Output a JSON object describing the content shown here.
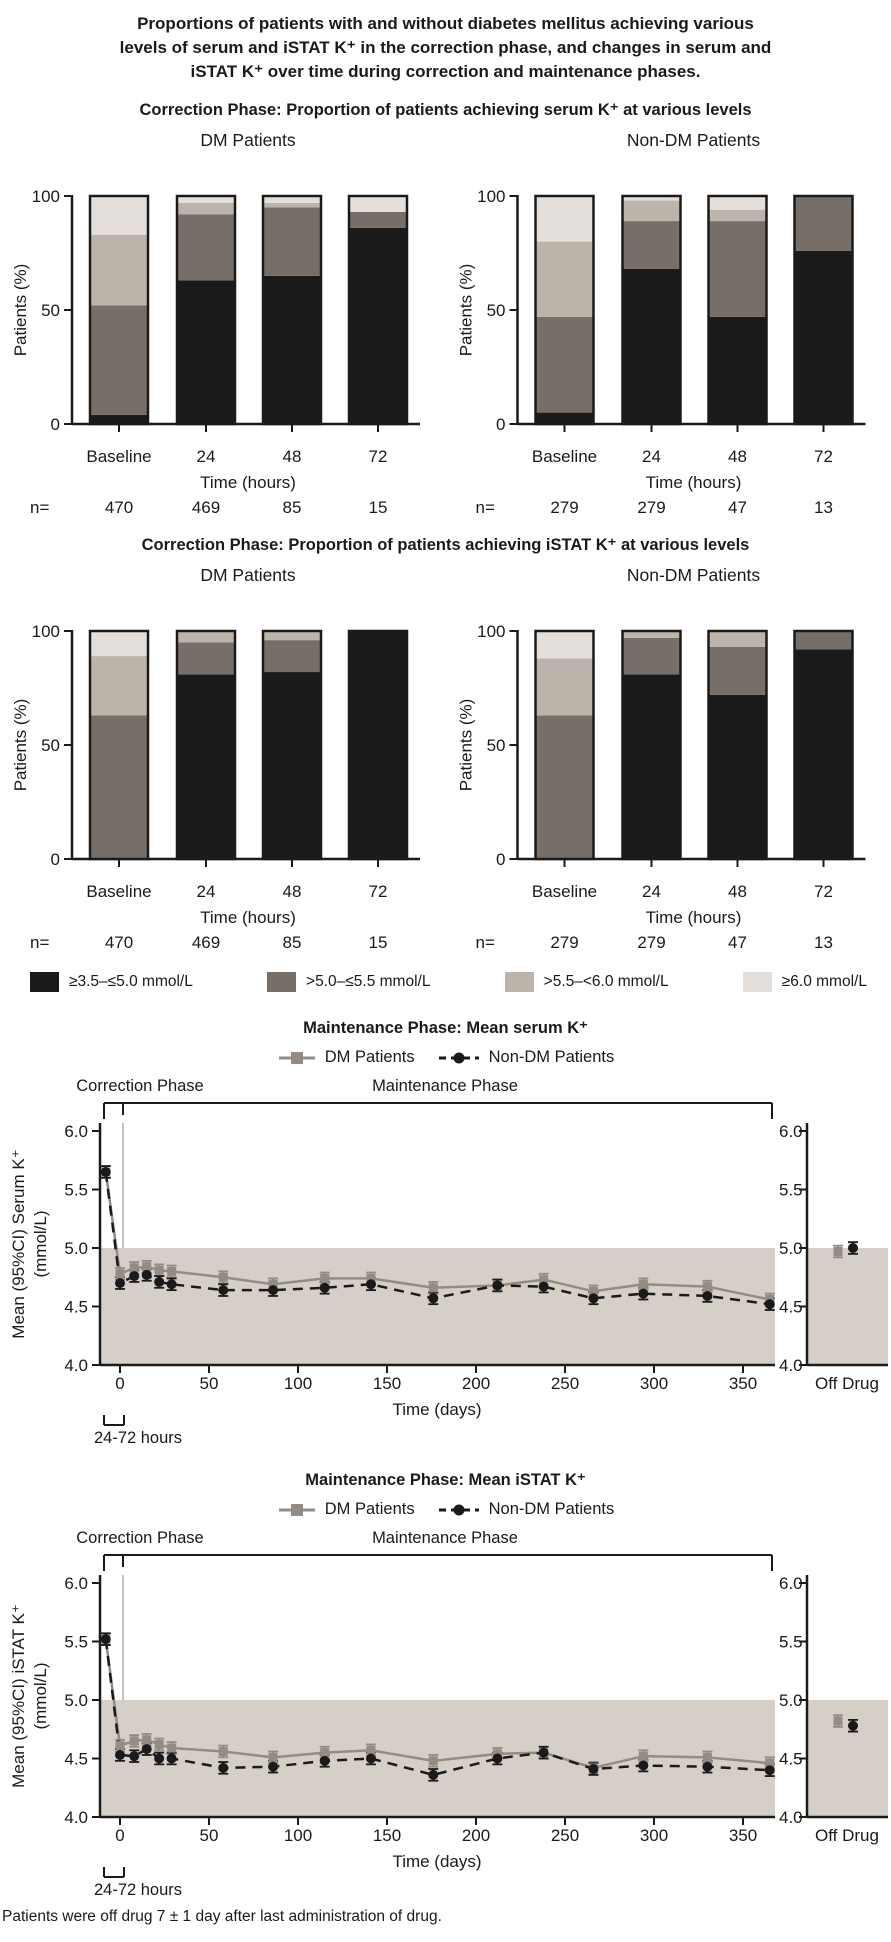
{
  "figure_title": "Proportions of patients with and without diabetes mellitus achieving various levels of serum and iSTAT K⁺ in the correction phase, and changes in serum and iSTAT K⁺ over time during correction and maintenance phases.",
  "footer": "Patients were off drug 7 ± 1 day after last administration of drug.",
  "colors": {
    "black": "#1a1a1a",
    "dark_gray": "#776E67",
    "mid_gray": "#BCB4AB",
    "light_gray": "#E4DFDA",
    "band": "#D6CFC8",
    "dm_gray": "#948B84",
    "separator_gray": "#B3ACA5",
    "axis": "#1a1a1a"
  },
  "legend_bars": {
    "items": [
      {
        "label": "≥3.5–≤5.0 mmol/L",
        "color_key": "black"
      },
      {
        "label": ">5.0–≤5.5 mmol/L",
        "color_key": "dark_gray"
      },
      {
        "label": ">5.5–<6.0 mmol/L",
        "color_key": "mid_gray"
      },
      {
        "label": "≥6.0 mmol/L",
        "color_key": "light_gray"
      }
    ]
  },
  "chart_data": [
    {
      "type": "bar",
      "stacked": true,
      "title": "Correction Phase: Proportion of patients achieving serum K⁺ at various levels",
      "ylabel": "Patients (%)",
      "xlabel": "Time (hours)",
      "ylim": [
        0,
        100
      ],
      "yticks": [
        0,
        50,
        100
      ],
      "categories": [
        "Baseline",
        "24",
        "48",
        "72"
      ],
      "segments": [
        "≥3.5–≤5.0 mmol/L",
        ">5.0–≤5.5 mmol/L",
        ">5.5–<6.0 mmol/L",
        "≥6.0 mmol/L"
      ],
      "panels": [
        {
          "title": "DM Patients",
          "n_label": "n=",
          "n": [
            "470",
            "469",
            "85",
            "15"
          ],
          "values": [
            [
              4,
              48,
              31,
              17
            ],
            [
              63,
              29,
              5,
              3
            ],
            [
              65,
              30,
              2,
              3
            ],
            [
              86,
              7,
              0,
              7
            ]
          ]
        },
        {
          "title": "Non-DM Patients",
          "n_label": "n=",
          "n": [
            "279",
            "279",
            "47",
            "13"
          ],
          "values": [
            [
              5,
              42,
              33,
              20
            ],
            [
              68,
              21,
              9,
              2
            ],
            [
              47,
              42,
              5,
              6
            ],
            [
              76,
              24,
              0,
              0
            ]
          ]
        }
      ]
    },
    {
      "type": "bar",
      "stacked": true,
      "title": "Correction Phase: Proportion of patients achieving iSTAT K⁺ at various levels",
      "ylabel": "Patients (%)",
      "xlabel": "Time (hours)",
      "ylim": [
        0,
        100
      ],
      "yticks": [
        0,
        50,
        100
      ],
      "categories": [
        "Baseline",
        "24",
        "48",
        "72"
      ],
      "segments": [
        "≥3.5–≤5.0 mmol/L",
        ">5.0–≤5.5 mmol/L",
        ">5.5–<6.0 mmol/L",
        "≥6.0 mmol/L"
      ],
      "panels": [
        {
          "title": "DM Patients",
          "n_label": "n=",
          "n": [
            "470",
            "469",
            "85",
            "15"
          ],
          "values": [
            [
              0,
              63,
              26,
              11
            ],
            [
              81,
              14,
              5,
              0
            ],
            [
              82,
              14,
              4,
              0
            ],
            [
              100,
              0,
              0,
              0
            ]
          ]
        },
        {
          "title": "Non-DM Patients",
          "n_label": "n=",
          "n": [
            "279",
            "279",
            "47",
            "13"
          ],
          "values": [
            [
              0,
              63,
              25,
              12
            ],
            [
              81,
              16,
              3,
              0
            ],
            [
              72,
              21,
              7,
              0
            ],
            [
              92,
              8,
              0,
              0
            ]
          ]
        }
      ]
    },
    {
      "type": "line",
      "title": "Maintenance Phase: Mean serum K⁺",
      "ylabel_lines": [
        "Mean (95%CI) Serum K⁺",
        "(mmol/L)"
      ],
      "xlabel": "Time (days)",
      "ylim": [
        4.0,
        6.0
      ],
      "yticks": [
        "4.0",
        "4.5",
        "5.0",
        "5.5",
        "6.0"
      ],
      "xticks": [
        0,
        50,
        100,
        150,
        200,
        250,
        300,
        350
      ],
      "normal_band": [
        4.0,
        5.0
      ],
      "phase_labels": [
        "Correction Phase",
        "Maintenance Phase"
      ],
      "correction_window_label": "24-72 hours",
      "off_drug_label": "Off Drug",
      "x_days": [
        -8,
        0,
        8,
        15,
        22,
        29,
        58,
        86,
        115,
        141,
        176,
        212,
        238,
        266,
        294,
        330,
        365
      ],
      "series": [
        {
          "name": "DM Patients",
          "marker": "square",
          "line": "solid",
          "ci": 0.05,
          "off_drug": 4.97,
          "values": [
            5.65,
            4.78,
            4.83,
            4.84,
            4.81,
            4.8,
            4.75,
            4.69,
            4.74,
            4.74,
            4.66,
            4.68,
            4.73,
            4.63,
            4.69,
            4.67,
            4.56
          ]
        },
        {
          "name": "Non-DM Patients",
          "marker": "circle",
          "line": "dashed",
          "ci": 0.05,
          "off_drug": 5.0,
          "values": [
            5.65,
            4.7,
            4.76,
            4.77,
            4.71,
            4.69,
            4.64,
            4.64,
            4.66,
            4.69,
            4.57,
            4.68,
            4.67,
            4.57,
            4.61,
            4.59,
            4.52
          ]
        }
      ]
    },
    {
      "type": "line",
      "title": "Maintenance Phase: Mean iSTAT K⁺",
      "ylabel_lines": [
        "Mean (95%CI) iSTAT K⁺",
        "(mmol/L)"
      ],
      "xlabel": "Time (days)",
      "ylim": [
        4.0,
        6.0
      ],
      "yticks": [
        "4.0",
        "4.5",
        "5.0",
        "5.5",
        "6.0"
      ],
      "xticks": [
        0,
        50,
        100,
        150,
        200,
        250,
        300,
        350
      ],
      "normal_band": [
        4.0,
        5.0
      ],
      "phase_labels": [
        "Correction Phase",
        "Maintenance Phase"
      ],
      "correction_window_label": "24-72 hours",
      "off_drug_label": "Off Drug",
      "x_days": [
        -8,
        0,
        8,
        15,
        22,
        29,
        58,
        86,
        115,
        141,
        176,
        212,
        238,
        266,
        294,
        330,
        365
      ],
      "series": [
        {
          "name": "DM Patients",
          "marker": "square",
          "line": "solid",
          "ci": 0.05,
          "off_drug": 4.82,
          "values": [
            5.52,
            4.61,
            4.65,
            4.66,
            4.62,
            4.59,
            4.56,
            4.51,
            4.55,
            4.57,
            4.48,
            4.54,
            4.55,
            4.42,
            4.52,
            4.51,
            4.46
          ]
        },
        {
          "name": "Non-DM Patients",
          "marker": "circle",
          "line": "dashed",
          "ci": 0.05,
          "off_drug": 4.78,
          "values": [
            5.52,
            4.53,
            4.52,
            4.58,
            4.5,
            4.5,
            4.42,
            4.43,
            4.48,
            4.5,
            4.36,
            4.5,
            4.55,
            4.41,
            4.44,
            4.43,
            4.4
          ]
        }
      ]
    }
  ]
}
